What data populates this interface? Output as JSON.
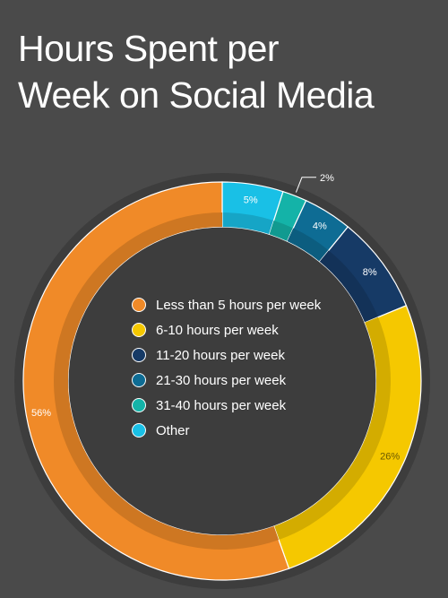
{
  "title_line1": "Hours Spent per",
  "title_line2": "Week on Social Media",
  "chart_data": {
    "type": "pie",
    "style": "donut",
    "start": "12 o'clock, clockwise",
    "legend_position": "center",
    "slices": [
      {
        "label": "Other",
        "value": 5,
        "text": "5%",
        "color": "#19c0e6"
      },
      {
        "label": "31-40 hours per week",
        "value": 2,
        "text": "2%",
        "color": "#14b3a8"
      },
      {
        "label": "21-30 hours per week",
        "value": 4,
        "text": "4%",
        "color": "#0e6c94"
      },
      {
        "label": "11-20 hours per week",
        "value": 8,
        "text": "8%",
        "color": "#163a66"
      },
      {
        "label": "6-10 hours per week",
        "value": 26,
        "text": "26%",
        "color": "#f5c800"
      },
      {
        "label": "Less than 5 hours per week",
        "value": 56,
        "text": "56%",
        "color": "#f08a28"
      }
    ]
  },
  "legend": [
    {
      "label": "Less than 5 hours per week",
      "color": "#f08a28"
    },
    {
      "label": "6-10 hours per week",
      "color": "#f5c800"
    },
    {
      "label": "11-20 hours per week",
      "color": "#163a66"
    },
    {
      "label": "21-30 hours per week",
      "color": "#0e6c94"
    },
    {
      "label": "31-40 hours per week",
      "color": "#14b3a8"
    },
    {
      "label": "Other",
      "color": "#19c0e6"
    }
  ]
}
